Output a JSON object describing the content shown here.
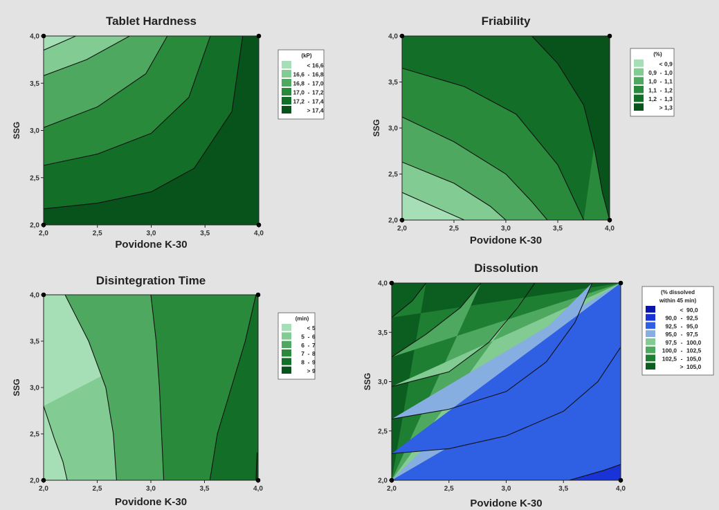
{
  "figure": {
    "background": "#e3e3e3",
    "panels": [
      {
        "title": "Tablet Hardness",
        "xlabel": "Povidone K-30",
        "ylabel": "SSG",
        "xticks": [
          "2,0",
          "2,5",
          "3,0",
          "3,5",
          "4,0"
        ],
        "yticks": [
          "2,0",
          "2,5",
          "3,0",
          "3,5",
          "4,0"
        ],
        "legend": {
          "title": "(kP)",
          "title2": "",
          "items": [
            {
              "low": "",
              "sep": "<",
              "high": "16,6",
              "color": "#a6dfb5"
            },
            {
              "low": "16,6",
              "sep": "-",
              "high": "16,8",
              "color": "#82cc94"
            },
            {
              "low": "16,8",
              "sep": "-",
              "high": "17,0",
              "color": "#4ea85f"
            },
            {
              "low": "17,0",
              "sep": "-",
              "high": "17,2",
              "color": "#2a8a3c"
            },
            {
              "low": "17,2",
              "sep": "-",
              "high": "17,4",
              "color": "#136e27"
            },
            {
              "low": "",
              "sep": ">",
              "high": "17,4",
              "color": "#08521b"
            }
          ]
        }
      },
      {
        "title": "Friability",
        "xlabel": "Povidone K-30",
        "ylabel": "SSG",
        "xticks": [
          "2,0",
          "2,5",
          "3,0",
          "3,5",
          "4,0"
        ],
        "yticks": [
          "2,0",
          "2,5",
          "3,0",
          "3,5",
          "4,0"
        ],
        "legend": {
          "title": "(%)",
          "title2": "",
          "items": [
            {
              "low": "",
              "sep": "<",
              "high": "0,9",
              "color": "#a6dfb5"
            },
            {
              "low": "0,9",
              "sep": "-",
              "high": "1,0",
              "color": "#82cc94"
            },
            {
              "low": "1,0",
              "sep": "-",
              "high": "1,1",
              "color": "#4ea85f"
            },
            {
              "low": "1,1",
              "sep": "-",
              "high": "1,2",
              "color": "#2a8a3c"
            },
            {
              "low": "1,2",
              "sep": "-",
              "high": "1,3",
              "color": "#136e27"
            },
            {
              "low": "",
              "sep": ">",
              "high": "1,3",
              "color": "#08521b"
            }
          ]
        }
      },
      {
        "title": "Disintegration Time",
        "xlabel": "Povidone K-30",
        "ylabel": "SSG",
        "xticks": [
          "2,0",
          "2,5",
          "3,0",
          "3,5",
          "4,0"
        ],
        "yticks": [
          "2,0",
          "2,5",
          "3,0",
          "3,5",
          "4,0"
        ],
        "legend": {
          "title": "(min)",
          "title2": "",
          "items": [
            {
              "low": "",
              "sep": "<",
              "high": "5",
              "color": "#a6dfb5"
            },
            {
              "low": "5",
              "sep": "-",
              "high": "6",
              "color": "#82cc94"
            },
            {
              "low": "6",
              "sep": "-",
              "high": "7",
              "color": "#4ea85f"
            },
            {
              "low": "7",
              "sep": "-",
              "high": "8",
              "color": "#2a8a3c"
            },
            {
              "low": "8",
              "sep": "-",
              "high": "9",
              "color": "#136e27"
            },
            {
              "low": "",
              "sep": ">",
              "high": "9",
              "color": "#08521b"
            }
          ]
        }
      },
      {
        "title": "Dissolution",
        "xlabel": "Povidone K-30",
        "ylabel": "SSG",
        "xticks": [
          "2,0",
          "2,5",
          "3,0",
          "3,5",
          "4,0"
        ],
        "yticks": [
          "2,0",
          "2,5",
          "3,0",
          "3,5",
          "4,0"
        ],
        "legend": {
          "title": "(% dissolved",
          "title2": "within 45 min)",
          "items": [
            {
              "low": "",
              "sep": "<",
              "high": "90,0",
              "color": "#0a14a8"
            },
            {
              "low": "90,0",
              "sep": "-",
              "high": "92,5",
              "color": "#1a33d6"
            },
            {
              "low": "92,5",
              "sep": "-",
              "high": "95,0",
              "color": "#2f5fe3"
            },
            {
              "low": "95,0",
              "sep": "-",
              "high": "97,5",
              "color": "#86aee0"
            },
            {
              "low": "97,5",
              "sep": "-",
              "high": "100,0",
              "color": "#82cc94"
            },
            {
              "low": "100,0",
              "sep": "-",
              "high": "102,5",
              "color": "#4ea85f"
            },
            {
              "low": "102,5",
              "sep": "-",
              "high": "105,0",
              "color": "#1e7e32"
            },
            {
              "low": "",
              "sep": ">",
              "high": "105,0",
              "color": "#0b5e1f"
            }
          ]
        }
      }
    ]
  },
  "chart_data": [
    {
      "type": "heatmap",
      "title": "Tablet Hardness",
      "xlabel": "Povidone K-30",
      "ylabel": "SSG",
      "xlim": [
        2.0,
        4.0
      ],
      "ylim": [
        2.0,
        4.0
      ],
      "legend_title": "(kP)",
      "levels": [
        16.6,
        16.8,
        17.0,
        17.2,
        17.4
      ],
      "colors": [
        "#a6dfb5",
        "#82cc94",
        "#4ea85f",
        "#2a8a3c",
        "#136e27",
        "#08521b"
      ],
      "contours": [
        {
          "level": 16.6,
          "points": [
            [
              2.0,
              3.85
            ],
            [
              2.3,
              4.0
            ]
          ]
        },
        {
          "level": 16.8,
          "points": [
            [
              2.0,
              3.58
            ],
            [
              2.4,
              3.75
            ],
            [
              2.8,
              4.0
            ]
          ]
        },
        {
          "level": 17.0,
          "points": [
            [
              2.0,
              3.03
            ],
            [
              2.5,
              3.25
            ],
            [
              2.95,
              3.6
            ],
            [
              3.15,
              4.0
            ]
          ]
        },
        {
          "level": 17.2,
          "points": [
            [
              2.0,
              2.63
            ],
            [
              2.5,
              2.75
            ],
            [
              3.0,
              2.97
            ],
            [
              3.35,
              3.35
            ],
            [
              3.55,
              4.0
            ]
          ]
        },
        {
          "level": 17.4,
          "points": [
            [
              2.0,
              2.17
            ],
            [
              2.5,
              2.23
            ],
            [
              3.0,
              2.35
            ],
            [
              3.4,
              2.6
            ],
            [
              3.75,
              3.2
            ],
            [
              3.85,
              4.0
            ]
          ]
        }
      ],
      "points": [
        [
          2.0,
          2.0
        ],
        [
          4.0,
          2.0
        ],
        [
          2.0,
          4.0
        ],
        [
          4.0,
          4.0
        ]
      ]
    },
    {
      "type": "heatmap",
      "title": "Friability",
      "xlabel": "Povidone K-30",
      "ylabel": "SSG",
      "xlim": [
        2.0,
        4.0
      ],
      "ylim": [
        2.0,
        4.0
      ],
      "legend_title": "(%)",
      "levels": [
        0.9,
        1.0,
        1.1,
        1.2,
        1.3
      ],
      "colors": [
        "#a6dfb5",
        "#82cc94",
        "#4ea85f",
        "#2a8a3c",
        "#136e27",
        "#08521b"
      ],
      "contours": [
        {
          "level": 0.9,
          "points": [
            [
              2.0,
              2.3
            ],
            [
              2.3,
              2.15
            ],
            [
              2.6,
              2.0
            ]
          ]
        },
        {
          "level": 1.0,
          "points": [
            [
              2.0,
              2.63
            ],
            [
              2.5,
              2.4
            ],
            [
              2.85,
              2.15
            ],
            [
              3.0,
              2.0
            ]
          ]
        },
        {
          "level": 1.1,
          "points": [
            [
              2.0,
              3.12
            ],
            [
              2.5,
              2.85
            ],
            [
              3.0,
              2.5
            ],
            [
              3.25,
              2.2
            ],
            [
              3.4,
              2.0
            ]
          ]
        },
        {
          "level": 1.2,
          "points": [
            [
              2.0,
              3.65
            ],
            [
              2.6,
              3.45
            ],
            [
              3.1,
              3.15
            ],
            [
              3.5,
              2.6
            ],
            [
              3.75,
              2.0
            ]
          ]
        },
        {
          "level": 1.3,
          "points": [
            [
              3.25,
              4.0
            ],
            [
              3.5,
              3.7
            ],
            [
              3.75,
              3.25
            ],
            [
              3.85,
              2.8
            ],
            [
              3.93,
              2.3
            ],
            [
              4.0,
              2.0
            ]
          ]
        }
      ],
      "points": [
        [
          2.0,
          2.0
        ],
        [
          4.0,
          2.0
        ],
        [
          2.0,
          4.0
        ],
        [
          4.0,
          4.0
        ]
      ]
    },
    {
      "type": "heatmap",
      "title": "Disintegration Time",
      "xlabel": "Povidone K-30",
      "ylabel": "SSG",
      "xlim": [
        2.0,
        4.0
      ],
      "ylim": [
        2.0,
        4.0
      ],
      "legend_title": "(min)",
      "levels": [
        5,
        6,
        7,
        8,
        9
      ],
      "colors": [
        "#a6dfb5",
        "#82cc94",
        "#4ea85f",
        "#2a8a3c",
        "#136e27",
        "#08521b"
      ],
      "contours": [
        {
          "level": 5,
          "points": [
            [
              2.0,
              2.8
            ],
            [
              2.1,
              2.45
            ],
            [
              2.18,
              2.2
            ],
            [
              2.22,
              2.0
            ]
          ]
        },
        {
          "level": 6,
          "points": [
            [
              2.2,
              4.0
            ],
            [
              2.42,
              3.5
            ],
            [
              2.58,
              3.0
            ],
            [
              2.65,
              2.5
            ],
            [
              2.68,
              2.0
            ]
          ]
        },
        {
          "level": 7,
          "points": [
            [
              3.0,
              4.0
            ],
            [
              3.05,
              3.5
            ],
            [
              3.08,
              3.0
            ],
            [
              3.1,
              2.5
            ],
            [
              3.12,
              2.0
            ]
          ]
        },
        {
          "level": 8,
          "points": [
            [
              3.55,
              2.0
            ],
            [
              3.62,
              2.5
            ],
            [
              3.75,
              3.0
            ],
            [
              3.88,
              3.5
            ],
            [
              3.98,
              4.0
            ]
          ]
        },
        {
          "level": 9,
          "points": [
            [
              3.98,
              2.0
            ],
            [
              3.99,
              2.3
            ]
          ]
        }
      ],
      "points": [
        [
          2.0,
          2.0
        ],
        [
          4.0,
          2.0
        ],
        [
          2.0,
          4.0
        ],
        [
          4.0,
          4.0
        ]
      ]
    },
    {
      "type": "heatmap",
      "title": "Dissolution",
      "xlabel": "Povidone K-30",
      "ylabel": "SSG",
      "xlim": [
        2.0,
        4.0
      ],
      "ylim": [
        2.0,
        4.0
      ],
      "legend_title": "(% dissolved within 45 min)",
      "levels": [
        90.0,
        92.5,
        95.0,
        97.5,
        100.0,
        102.5,
        105.0
      ],
      "colors": [
        "#0a14a8",
        "#1a33d6",
        "#2f5fe3",
        "#86aee0",
        "#82cc94",
        "#4ea85f",
        "#1e7e32",
        "#0b5e1f"
      ],
      "contours": [
        {
          "level": 105.0,
          "points": [
            [
              2.0,
              3.65
            ],
            [
              2.18,
              3.82
            ],
            [
              2.3,
              4.0
            ]
          ]
        },
        {
          "level": 102.5,
          "points": [
            [
              2.0,
              3.25
            ],
            [
              2.3,
              3.48
            ],
            [
              2.6,
              3.75
            ],
            [
              2.78,
              4.0
            ]
          ]
        },
        {
          "level": 100.0,
          "points": [
            [
              2.0,
              2.95
            ],
            [
              2.5,
              3.1
            ],
            [
              2.85,
              3.4
            ],
            [
              3.1,
              3.75
            ],
            [
              3.25,
              4.0
            ]
          ]
        },
        {
          "level": 97.5,
          "points": [
            [
              2.0,
              2.62
            ],
            [
              2.5,
              2.72
            ],
            [
              3.0,
              2.9
            ],
            [
              3.35,
              3.2
            ],
            [
              3.6,
              3.6
            ],
            [
              3.75,
              4.0
            ]
          ]
        },
        {
          "level": 95.0,
          "points": [
            [
              2.0,
              2.27
            ],
            [
              2.5,
              2.32
            ],
            [
              3.0,
              2.45
            ],
            [
              3.5,
              2.7
            ],
            [
              3.8,
              3.0
            ],
            [
              4.0,
              3.35
            ]
          ]
        },
        {
          "level": 92.5,
          "points": [
            [
              3.55,
              2.0
            ],
            [
              3.85,
              2.1
            ],
            [
              4.0,
              2.16
            ]
          ]
        }
      ],
      "points": [
        [
          2.0,
          2.0
        ],
        [
          4.0,
          2.0
        ],
        [
          2.0,
          4.0
        ],
        [
          4.0,
          4.0
        ]
      ]
    }
  ]
}
